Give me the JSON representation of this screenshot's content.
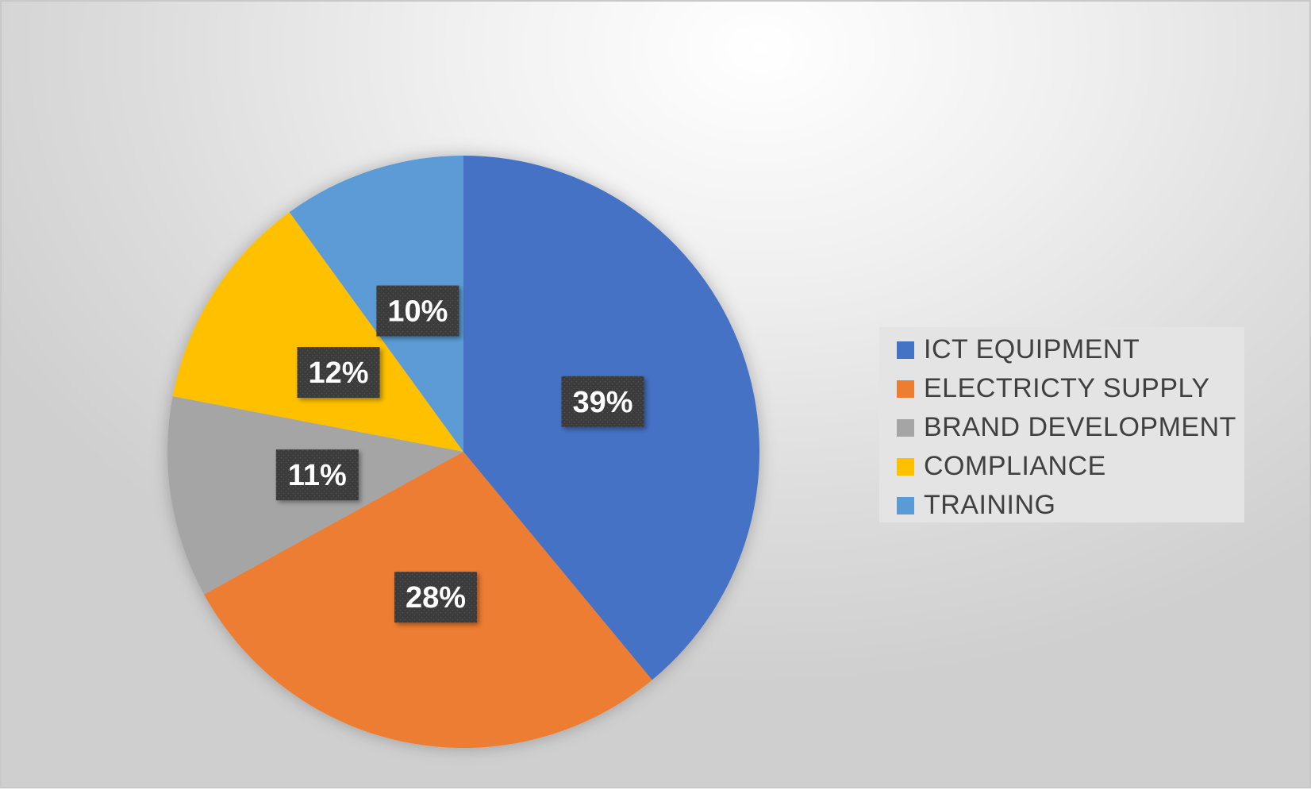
{
  "chart_data": {
    "type": "pie",
    "title": "",
    "categories": [
      "ICT EQUIPMENT",
      "ELECTRICTY SUPPLY",
      "BRAND DEVELOPMENT",
      "COMPLIANCE",
      "TRAINING"
    ],
    "values": [
      39,
      28,
      11,
      12,
      10
    ],
    "data_labels": [
      "39%",
      "28%",
      "11%",
      "12%",
      "10%"
    ],
    "colors": [
      "#4472C4",
      "#ED7D31",
      "#A5A5A5",
      "#FFC000",
      "#5B9BD5"
    ],
    "start_angle_deg": 0,
    "direction": "clockwise",
    "legend_position": "right"
  },
  "colors": {
    "label_box": "#3b3b3b",
    "label_text": "#ffffff",
    "legend_text": "#404040"
  }
}
